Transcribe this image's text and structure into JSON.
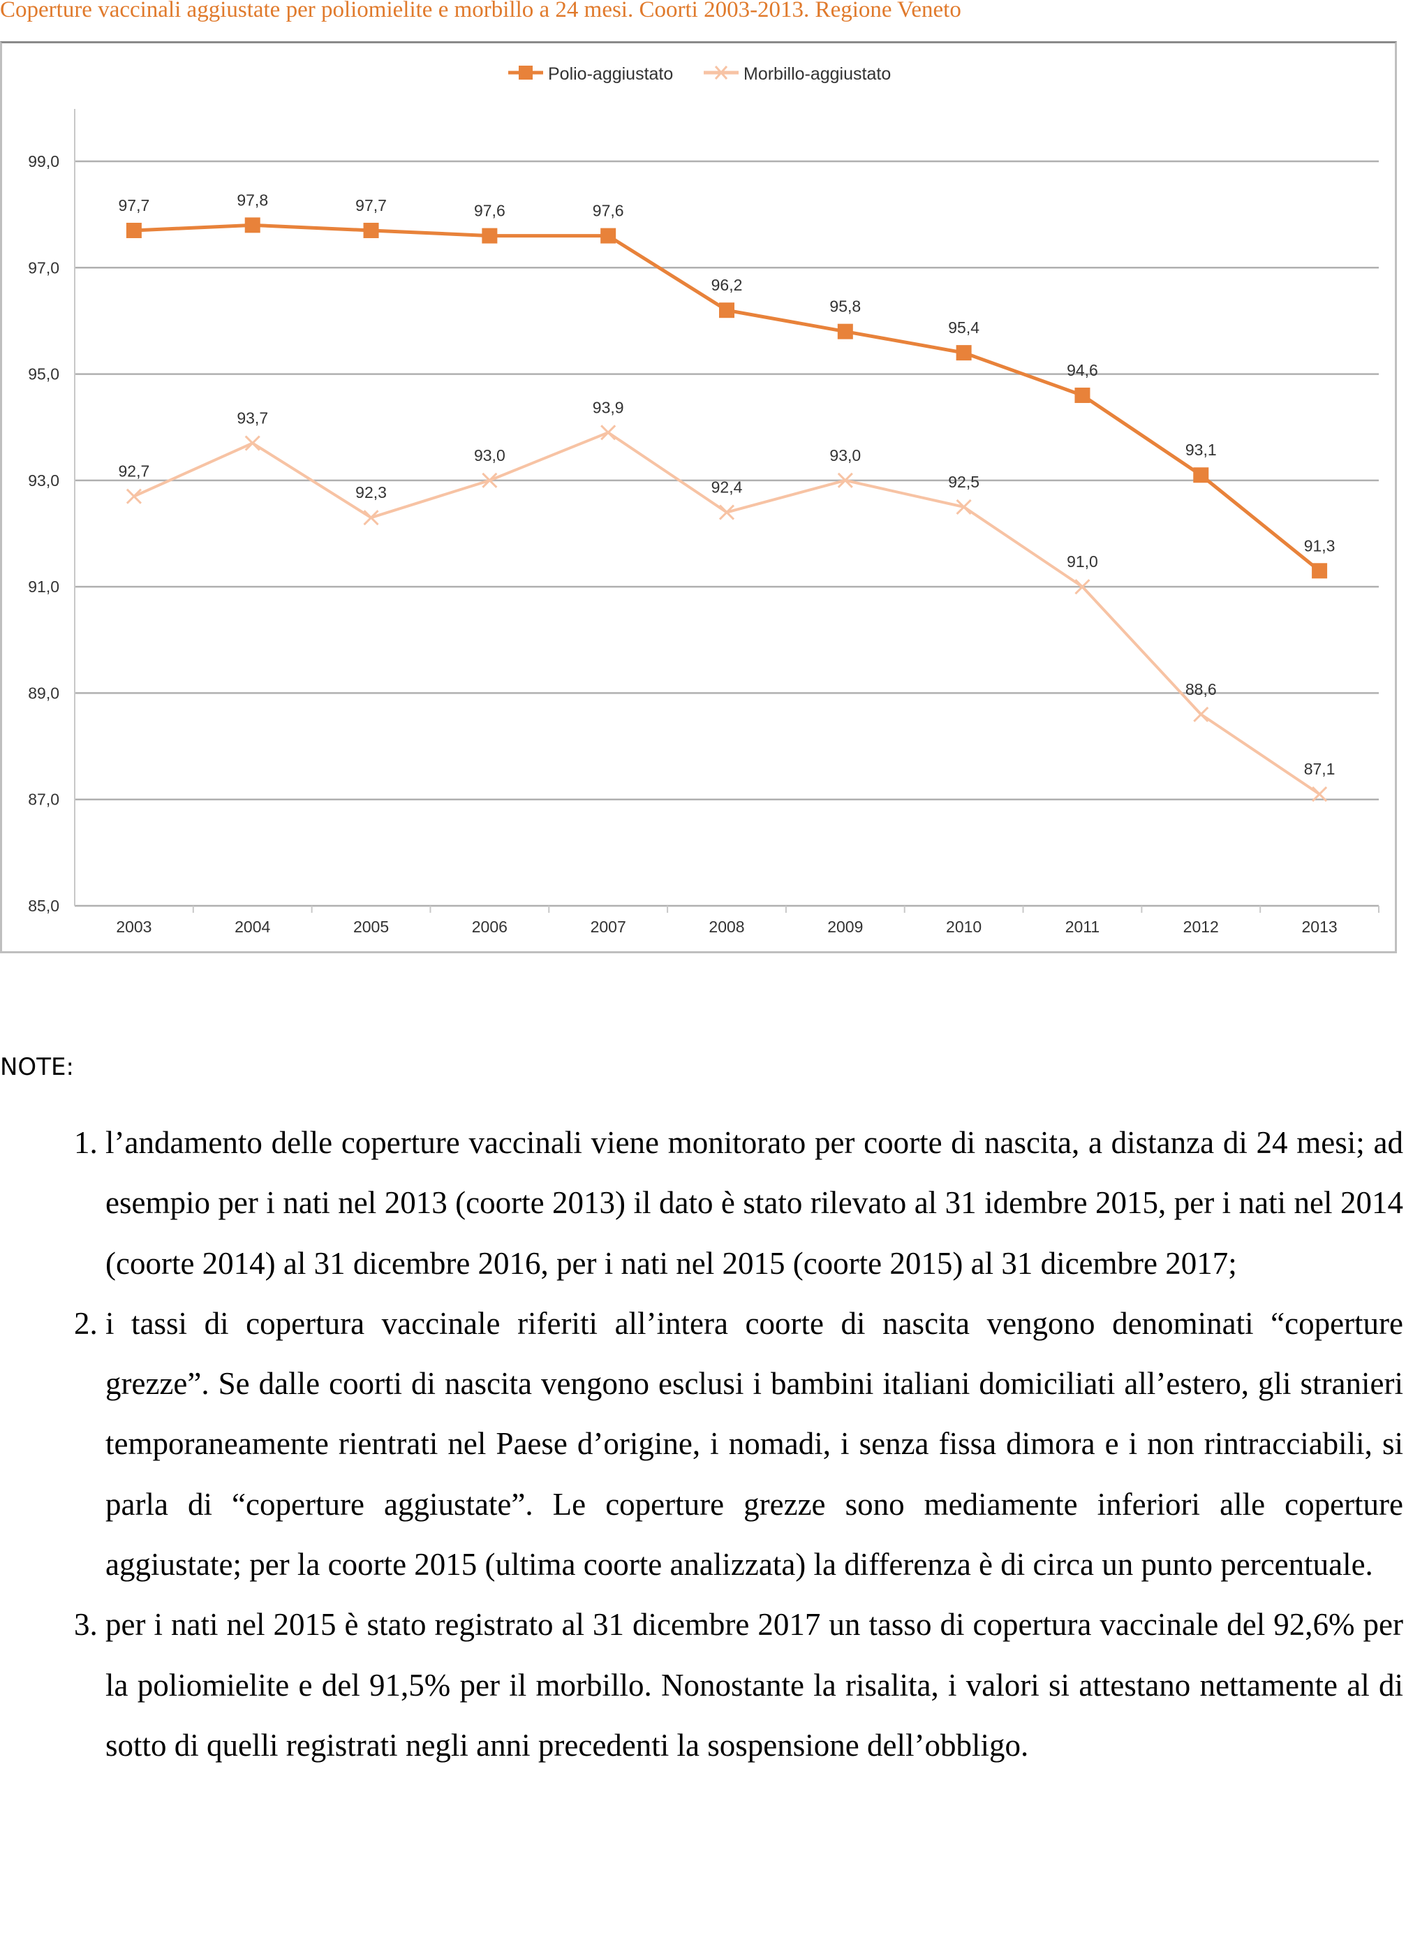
{
  "title": "Coperture vaccinali aggiustate per poliomielite e morbillo a 24 mesi. Coorti 2003-2013. Regione Veneto",
  "chart_data": {
    "type": "line",
    "title": "Coperture vaccinali aggiustate per poliomielite e morbillo a 24 mesi. Coorti 2003-2013. Regione Veneto",
    "xlabel": "",
    "ylabel": "",
    "categories": [
      "2003",
      "2004",
      "2005",
      "2006",
      "2007",
      "2008",
      "2009",
      "2010",
      "2011",
      "2012",
      "2013"
    ],
    "ylim": [
      85,
      99
    ],
    "yticks": [
      "85,0",
      "87,0",
      "89,0",
      "91,0",
      "93,0",
      "95,0",
      "97,0",
      "99,0"
    ],
    "ytick_values": [
      85,
      87,
      89,
      91,
      93,
      95,
      97,
      99
    ],
    "grid": true,
    "legend_placement": "top-center",
    "series": [
      {
        "name": "Polio-aggiustato",
        "color": "#e8823a",
        "marker": "square",
        "values": [
          97.7,
          97.8,
          97.7,
          97.6,
          97.6,
          96.2,
          95.8,
          95.4,
          94.6,
          93.1,
          91.3
        ],
        "labels": [
          "97,7",
          "97,8",
          "97,7",
          "97,6",
          "97,6",
          "96,2",
          "95,8",
          "95,4",
          "94,6",
          "93,1",
          "91,3"
        ]
      },
      {
        "name": "Morbillo-aggiustato",
        "color": "#f7c3a4",
        "marker": "x",
        "values": [
          92.7,
          93.7,
          92.3,
          93.0,
          93.9,
          92.4,
          93.0,
          92.5,
          91.0,
          88.6,
          87.1
        ],
        "labels": [
          "92,7",
          "93,7",
          "92,3",
          "93,0",
          "93,9",
          "92,4",
          "93,0",
          "92,5",
          "91,0",
          "88,6",
          "87,1"
        ]
      }
    ]
  },
  "notes": {
    "heading": "NOTE:",
    "items": [
      "l’andamento delle coperture vaccinali viene monitorato per coorte di nascita, a distanza di 24 mesi; ad esempio per i nati nel 2013 (coorte 2013) il dato è stato rilevato al 31 idembre 2015, per i nati nel 2014 (coorte 2014) al 31 dicembre 2016, per i nati nel 2015 (coorte 2015) al 31 dicembre 2017;",
      "i tassi di copertura vaccinale riferiti all’intera coorte di nascita vengono denominati “coperture grezze”. Se dalle coorti di nascita vengono esclusi i bambini italiani domiciliati all’estero, gli stranieri temporaneamente rientrati nel Paese d’origine, i nomadi, i senza fissa dimora e i non rintracciabili, si parla di “coperture aggiustate”. Le coperture grezze sono mediamente inferiori alle coperture aggiustate; per la coorte 2015 (ultima coorte analizzata) la differenza è di circa un punto percentuale.",
      "per i nati nel 2015 è stato registrato al 31 dicembre 2017 un tasso di copertura vaccinale del 92,6% per la poliomielite e del 91,5% per il morbillo. Nonostante la risalita, i valori si attestano nettamente al di sotto di quelli registrati negli anni precedenti la sospensione dell’obbligo."
    ]
  }
}
